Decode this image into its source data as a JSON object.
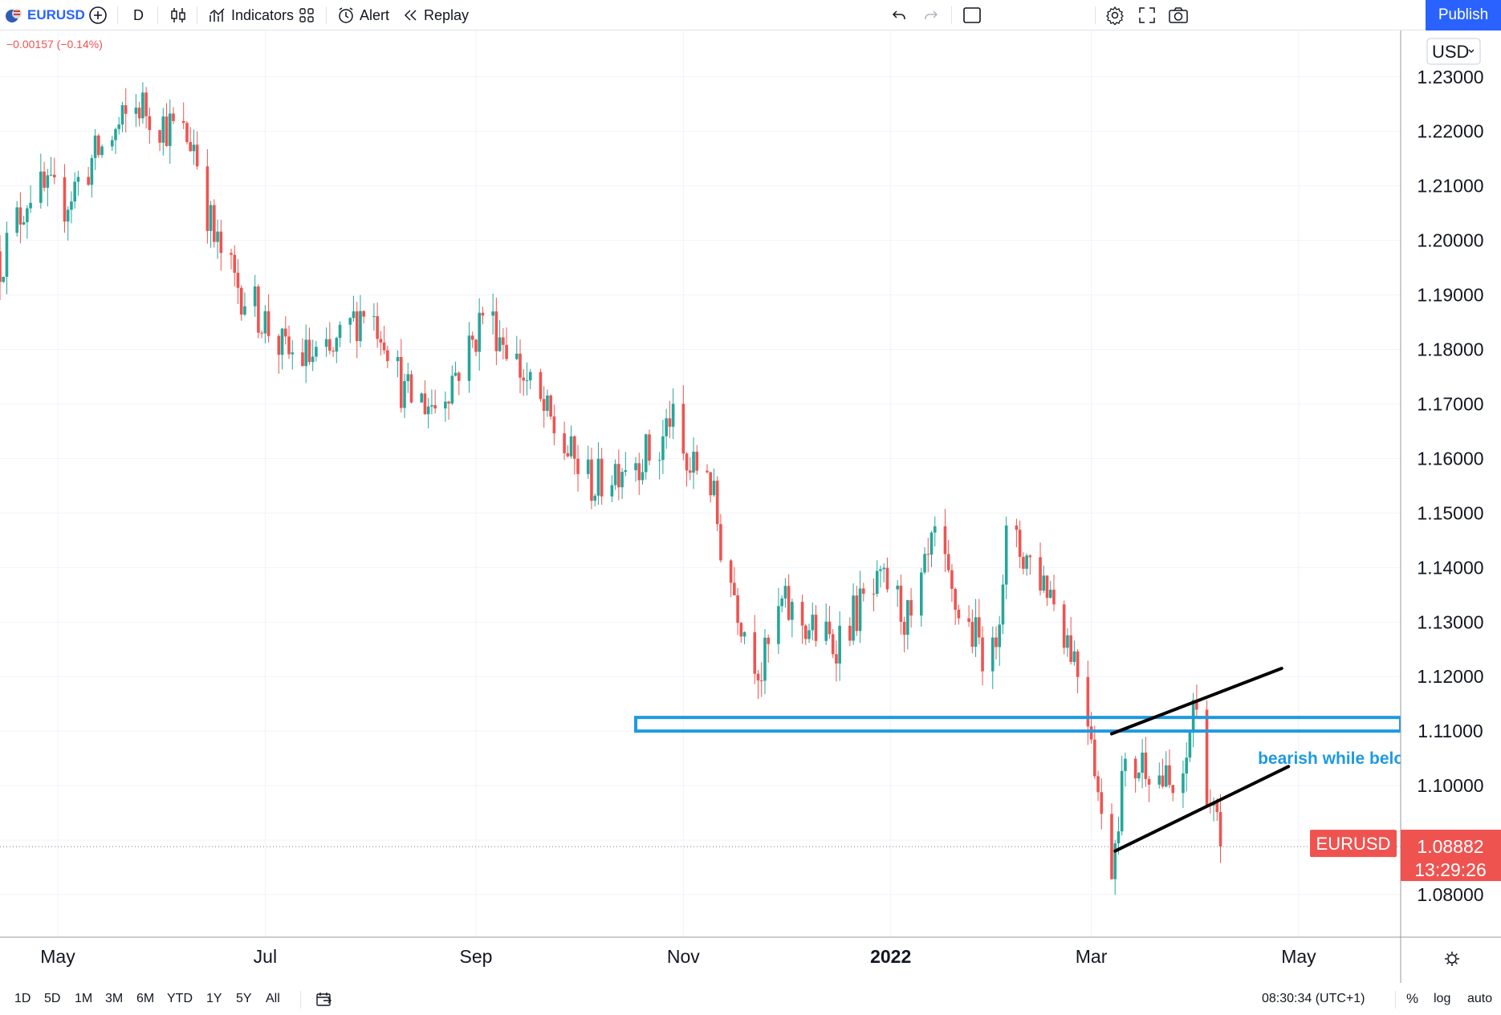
{
  "toolbar": {
    "symbol": "EURUSD",
    "interval": "D",
    "indicators_label": "Indicators",
    "alert_label": "Alert",
    "replay_label": "Replay",
    "publish_label": "Publish",
    "icons": [
      "flag-icon",
      "add-symbol-icon",
      "candles-icon",
      "indicators-icon",
      "layout-icon",
      "alert-icon",
      "replay-icon",
      "undo-icon",
      "redo-icon",
      "rectangle-icon",
      "settings-icon",
      "fullscreen-icon",
      "camera-icon"
    ]
  },
  "change_text": "−0.00157 (−0.14%)",
  "currency_label": "USD",
  "bottom": {
    "ranges": [
      "1D",
      "5D",
      "1M",
      "3M",
      "6M",
      "YTD",
      "1Y",
      "5Y",
      "All"
    ],
    "time": "08:30:34 (UTC+1)",
    "percent_label": "%",
    "log_label": "log",
    "auto_label": "auto"
  },
  "colors": {
    "up": "#26a69a",
    "down": "#ef5350",
    "zone": "#1e9ae0",
    "annotation": "#1e9ae0",
    "price_tag": "#ef5350"
  },
  "chart_data": {
    "type": "candlestick",
    "symbol": "EURUSD",
    "interval": "D",
    "ylim": [
      1.0722,
      1.2385
    ],
    "y_ticks": [
      1.08,
      1.09,
      1.1,
      1.11,
      1.12,
      1.13,
      1.14,
      1.15,
      1.16,
      1.17,
      1.18,
      1.19,
      1.2,
      1.21,
      1.22,
      1.23
    ],
    "y_tick_labels": [
      "1.08000",
      "",
      "1.10000",
      "1.11000",
      "1.12000",
      "1.13000",
      "1.14000",
      "1.15000",
      "1.16000",
      "1.17000",
      "1.18000",
      "1.19000",
      "1.20000",
      "1.21000",
      "1.22000",
      "1.23000"
    ],
    "x_range": [
      "2021-04-14",
      "2022-05-31"
    ],
    "x_ticks": [
      {
        "date": "2021-05-01",
        "label": "May",
        "bold": false
      },
      {
        "date": "2021-07-01",
        "label": "Jul",
        "bold": false
      },
      {
        "date": "2021-09-01",
        "label": "Sep",
        "bold": false
      },
      {
        "date": "2021-11-01",
        "label": "Nov",
        "bold": false
      },
      {
        "date": "2022-01-01",
        "label": "2022",
        "bold": true
      },
      {
        "date": "2022-03-01",
        "label": "Mar",
        "bold": false
      },
      {
        "date": "2022-05-01",
        "label": "May",
        "bold": false
      }
    ],
    "close_anchors": [
      [
        "2021-04-14",
        1.196
      ],
      [
        "2021-04-23",
        1.2095
      ],
      [
        "2021-05-03",
        1.207
      ],
      [
        "2021-05-11",
        1.2145
      ],
      [
        "2021-05-25",
        1.225
      ],
      [
        "2021-06-01",
        1.2215
      ],
      [
        "2021-06-10",
        1.218
      ],
      [
        "2021-06-16",
        1.2
      ],
      [
        "2021-06-22",
        1.1925
      ],
      [
        "2021-06-30",
        1.186
      ],
      [
        "2021-07-07",
        1.179
      ],
      [
        "2021-07-20",
        1.178
      ],
      [
        "2021-07-30",
        1.188
      ],
      [
        "2021-08-05",
        1.1835
      ],
      [
        "2021-08-11",
        1.1715
      ],
      [
        "2021-08-20",
        1.17
      ],
      [
        "2021-08-31",
        1.181
      ],
      [
        "2021-09-03",
        1.187
      ],
      [
        "2021-09-10",
        1.1815
      ],
      [
        "2021-09-17",
        1.1725
      ],
      [
        "2021-09-29",
        1.16
      ],
      [
        "2021-10-06",
        1.155
      ],
      [
        "2021-10-15",
        1.16
      ],
      [
        "2021-10-25",
        1.161
      ],
      [
        "2021-10-28",
        1.168
      ],
      [
        "2021-11-02",
        1.1575
      ],
      [
        "2021-11-08",
        1.159
      ],
      [
        "2021-11-12",
        1.1445
      ],
      [
        "2021-11-19",
        1.129
      ],
      [
        "2021-11-24",
        1.121
      ],
      [
        "2021-11-30",
        1.133
      ],
      [
        "2021-12-08",
        1.129
      ],
      [
        "2021-12-15",
        1.126
      ],
      [
        "2021-12-22",
        1.132
      ],
      [
        "2021-12-31",
        1.137
      ],
      [
        "2022-01-07",
        1.129
      ],
      [
        "2022-01-14",
        1.145
      ],
      [
        "2022-01-19",
        1.134
      ],
      [
        "2022-01-26",
        1.127
      ],
      [
        "2022-01-31",
        1.123
      ],
      [
        "2022-02-04",
        1.145
      ],
      [
        "2022-02-10",
        1.142
      ],
      [
        "2022-02-17",
        1.136
      ],
      [
        "2022-02-24",
        1.124
      ],
      [
        "2022-03-01",
        1.111
      ],
      [
        "2022-03-04",
        1.093
      ],
      [
        "2022-03-07",
        1.086
      ],
      [
        "2022-03-10",
        1.101
      ],
      [
        "2022-03-17",
        1.105
      ],
      [
        "2022-03-22",
        1.101
      ],
      [
        "2022-03-25",
        1.0985
      ],
      [
        "2022-03-28",
        1.0985
      ],
      [
        "2022-03-31",
        1.116
      ],
      [
        "2022-04-05",
        1.097
      ],
      [
        "2022-04-08",
        1.0888
      ]
    ],
    "last_price": "1.08882",
    "last_price_value": 1.08882,
    "countdown": "13:29:26",
    "price_tag_label": "EURUSD",
    "zone": {
      "start": "2021-10-18",
      "end": "2022-05-31",
      "bottom": 1.11,
      "top": 1.1125
    },
    "channel_upper": {
      "start": [
        "2022-03-07",
        1.1095
      ],
      "end": [
        "2022-04-26",
        1.1215
      ]
    },
    "channel_lower": {
      "start": [
        "2022-03-08",
        1.088
      ],
      "end": [
        "2022-04-28",
        1.1035
      ]
    },
    "annotation": "bearish while below"
  }
}
